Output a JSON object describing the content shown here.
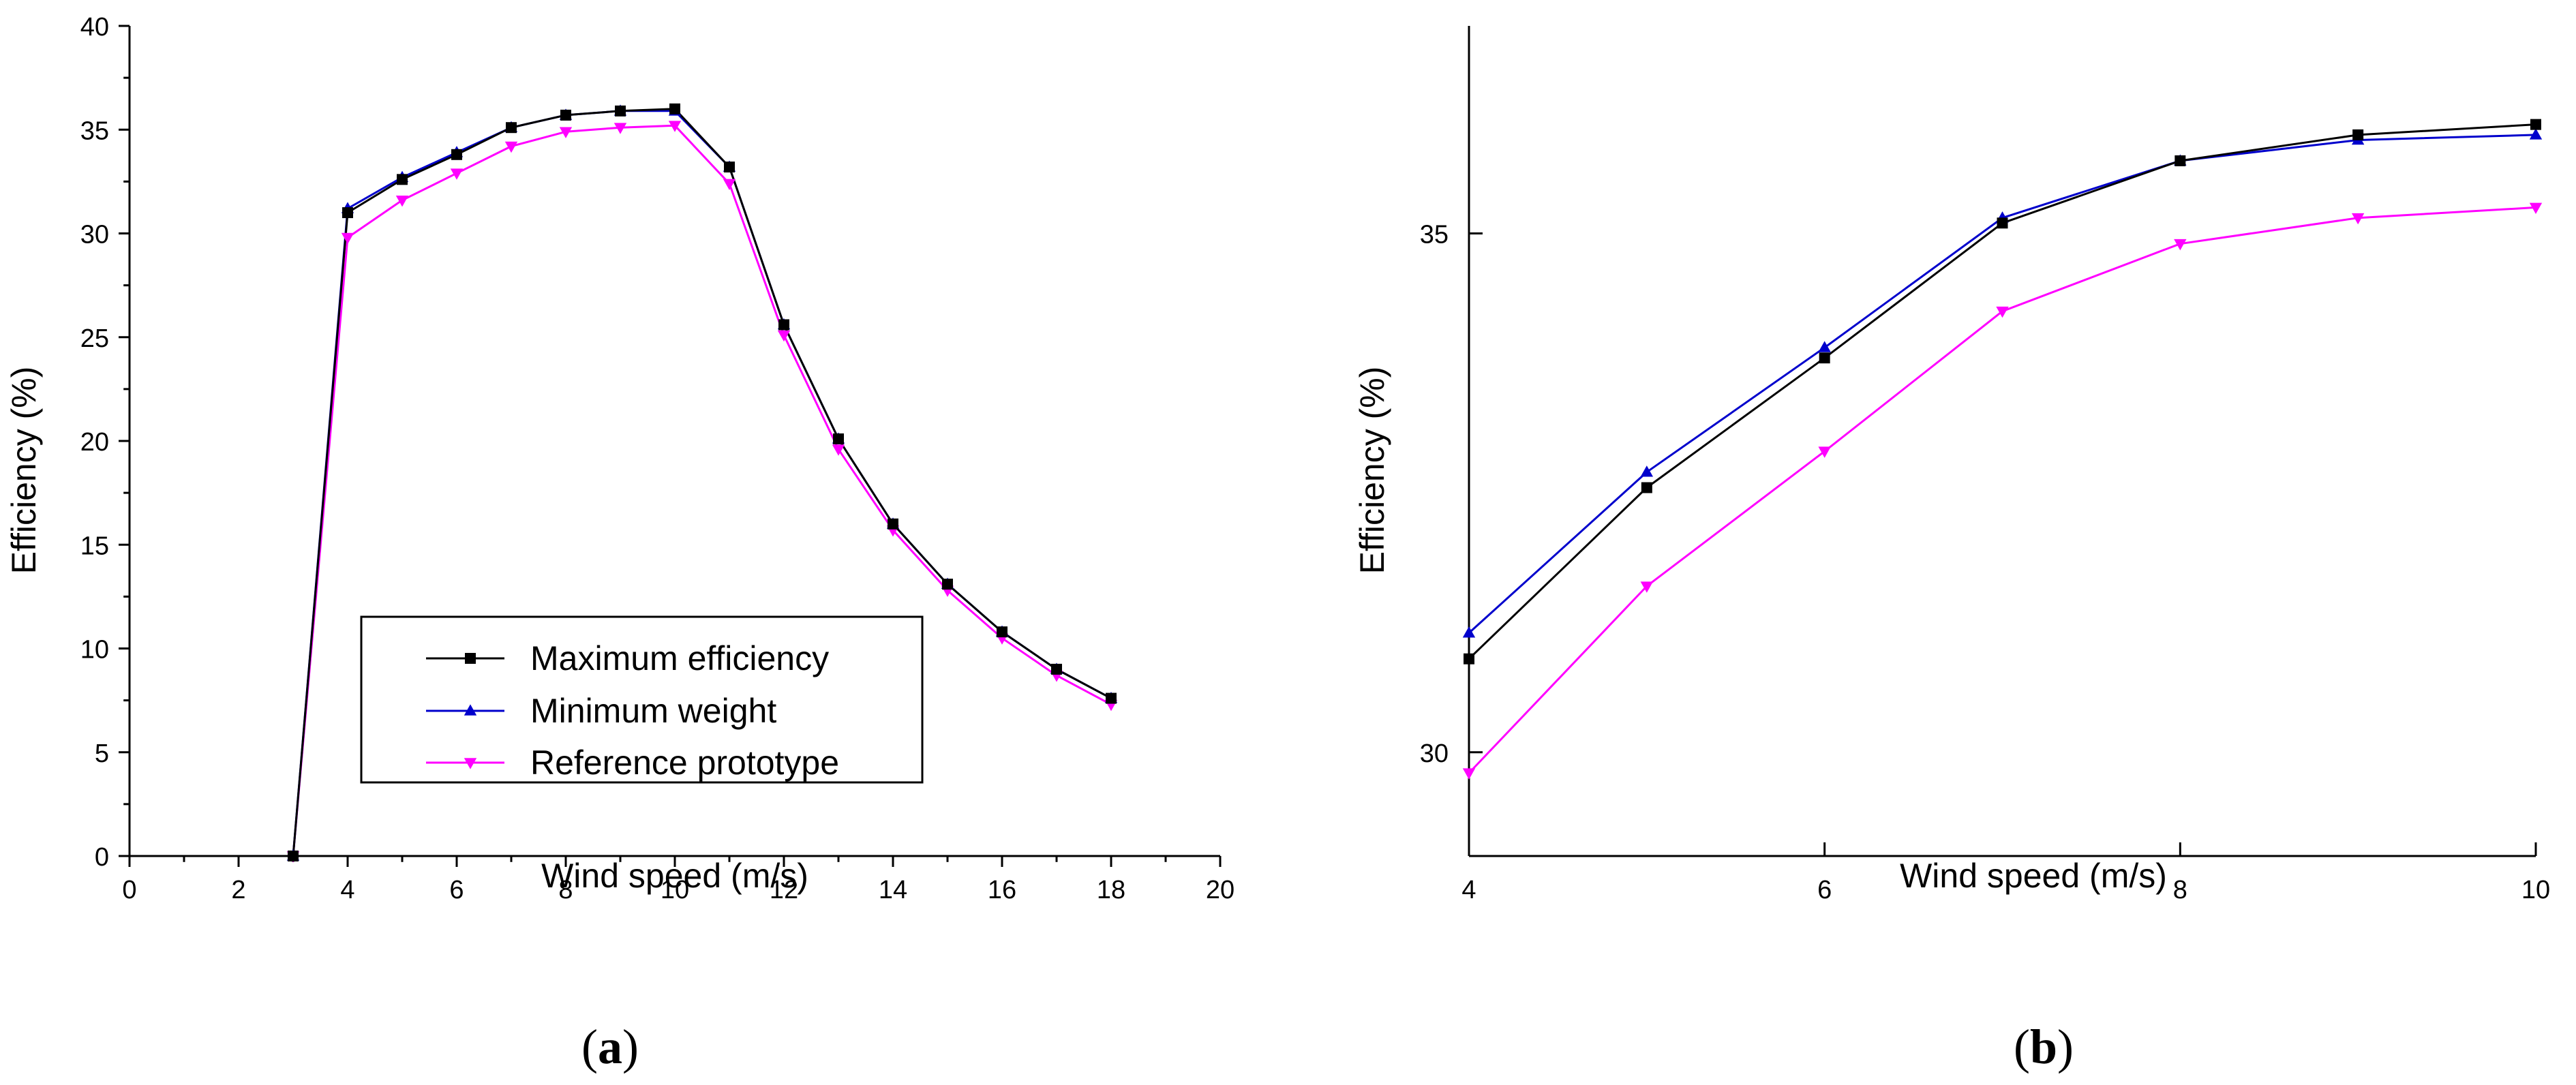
{
  "chart_data": [
    {
      "panel_label": "a",
      "type": "line",
      "xlabel": "Wind speed (m/s)",
      "ylabel": "Efficiency (%)",
      "xlim": [
        0,
        20
      ],
      "ylim": [
        0,
        40
      ],
      "xticks": [
        0,
        2,
        4,
        6,
        8,
        10,
        12,
        14,
        16,
        18,
        20
      ],
      "yticks": [
        0,
        5,
        10,
        15,
        20,
        25,
        30,
        35,
        40
      ],
      "grid": false,
      "legend_position": "bottom-center",
      "x": [
        3,
        4,
        5,
        6,
        7,
        8,
        9,
        10,
        11,
        12,
        13,
        14,
        15,
        16,
        17,
        18
      ],
      "series": [
        {
          "name": "Maximum efficiency",
          "color": "#000000",
          "marker": "square",
          "values": [
            0,
            31.0,
            32.6,
            33.8,
            35.1,
            35.7,
            35.9,
            36.0,
            33.2,
            25.6,
            20.1,
            16.0,
            13.1,
            10.8,
            9.0,
            7.6
          ]
        },
        {
          "name": "Minimum weight",
          "color": "#0000cc",
          "marker": "triangle-up",
          "values": [
            0,
            31.2,
            32.7,
            33.9,
            35.1,
            35.7,
            35.9,
            35.9,
            33.2,
            25.6,
            20.1,
            16.0,
            13.1,
            10.8,
            9.0,
            7.6
          ]
        },
        {
          "name": "Reference prototype",
          "color": "#ff00ff",
          "marker": "triangle-down",
          "values": [
            0,
            29.8,
            31.6,
            32.9,
            34.2,
            34.9,
            35.1,
            35.2,
            32.4,
            25.1,
            19.6,
            15.7,
            12.8,
            10.5,
            8.7,
            7.3
          ]
        }
      ]
    },
    {
      "panel_label": "b",
      "type": "line",
      "xlabel": "Wind speed (m/s)",
      "ylabel": "Efficiency (%)",
      "xlim": [
        4,
        10
      ],
      "ylim": [
        29,
        37
      ],
      "xticks": [
        4,
        6,
        8,
        10
      ],
      "yticks": [
        30,
        35
      ],
      "grid": false,
      "x": [
        4,
        5,
        6,
        7,
        8,
        9,
        10
      ],
      "series": [
        {
          "name": "Maximum efficiency",
          "color": "#000000",
          "marker": "square",
          "values": [
            30.9,
            32.55,
            33.8,
            35.1,
            35.7,
            35.95,
            36.05
          ]
        },
        {
          "name": "Minimum weight",
          "color": "#0000cc",
          "marker": "triangle-up",
          "values": [
            31.15,
            32.7,
            33.9,
            35.15,
            35.7,
            35.9,
            35.95
          ]
        },
        {
          "name": "Reference prototype",
          "color": "#ff00ff",
          "marker": "triangle-down",
          "values": [
            29.8,
            31.6,
            32.9,
            34.25,
            34.9,
            35.15,
            35.25
          ]
        }
      ]
    }
  ]
}
